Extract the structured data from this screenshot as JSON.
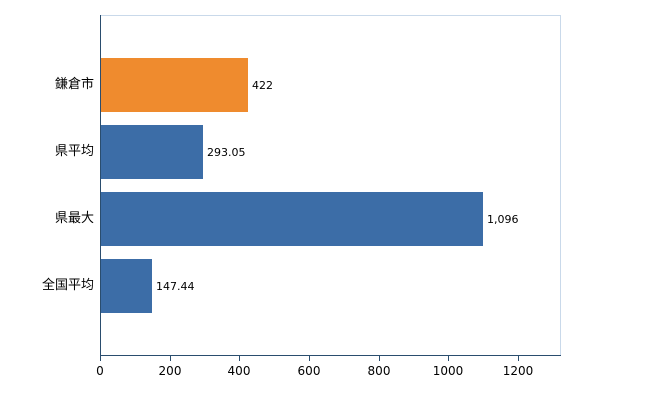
{
  "chart_data": {
    "type": "bar",
    "orientation": "horizontal",
    "title": "",
    "xlabel": "",
    "ylabel": "",
    "categories": [
      "鎌倉市",
      "県平均",
      "県最大",
      "全国平均"
    ],
    "values": [
      422,
      293.05,
      1096,
      147.44
    ],
    "value_labels": [
      "422",
      "293.05",
      "1,096",
      "147.44"
    ],
    "bar_colors": [
      "#ef8b2e",
      "#3c6da7",
      "#3c6da7",
      "#3c6da7"
    ],
    "x_ticks": [
      0,
      200,
      400,
      600,
      800,
      1000,
      1200
    ],
    "x_tick_labels": [
      "0",
      "200",
      "400",
      "600",
      "800",
      "1000",
      "1200"
    ],
    "xlim": [
      0,
      1320
    ],
    "grid": false,
    "legend_position": "none",
    "axis_color": "#2a4d6e",
    "border_color": "#c9d9ea",
    "background_color": "#ffffff"
  }
}
